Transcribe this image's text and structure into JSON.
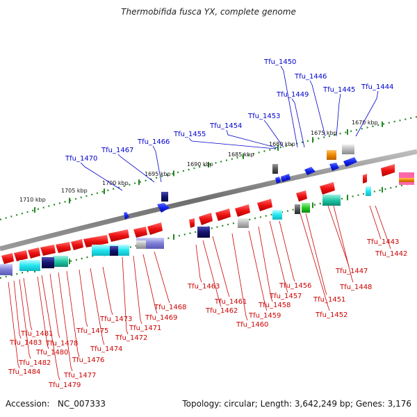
{
  "title": "Thermobifida fusca YX, complete genome",
  "accession_label": "Accession:",
  "accession": "NC_007333",
  "topology_text": "Topology: circular; Length: 3,642,249 bp; Genes: 3,176",
  "colors": {
    "backbone": "#7a7a7a",
    "tick": "#228822",
    "forward_label": "#0000cc",
    "reverse_label": "#cc0000",
    "gene_red": "#ee1111",
    "gene_blue": "#1122ee"
  },
  "kbp_labels": [
    "1670 kbp",
    "1675 kbp",
    "1680 kbp",
    "1685 kbp",
    "1690 kbp",
    "1695 kbp",
    "1700 kbp",
    "1705 kbp",
    "1710 kbp"
  ],
  "forward_gene_labels": [
    "Tfu_1444",
    "Tfu_1445",
    "Tfu_1446",
    "Tfu_1449",
    "Tfu_1450",
    "Tfu_1453",
    "Tfu_1454",
    "Tfu_1455",
    "Tfu_1466",
    "Tfu_1467",
    "Tfu_1470"
  ],
  "reverse_gene_labels": [
    "Tfu_1442",
    "Tfu_1443",
    "Tfu_1447",
    "Tfu_1448",
    "Tfu_1451",
    "Tfu_1452",
    "Tfu_1456",
    "Tfu_1457",
    "Tfu_1458",
    "Tfu_1459",
    "Tfu_1460",
    "Tfu_1461",
    "Tfu_1462",
    "Tfu_1463",
    "Tfu_1468",
    "Tfu_1469",
    "Tfu_1471",
    "Tfu_1472",
    "Tfu_1473",
    "Tfu_1474",
    "Tfu_1475",
    "Tfu_1476",
    "Tfu_1477",
    "Tfu_1478",
    "Tfu_1479",
    "Tfu_1480",
    "Tfu_1481",
    "Tfu_1482",
    "Tfu_1483",
    "Tfu_1484"
  ]
}
